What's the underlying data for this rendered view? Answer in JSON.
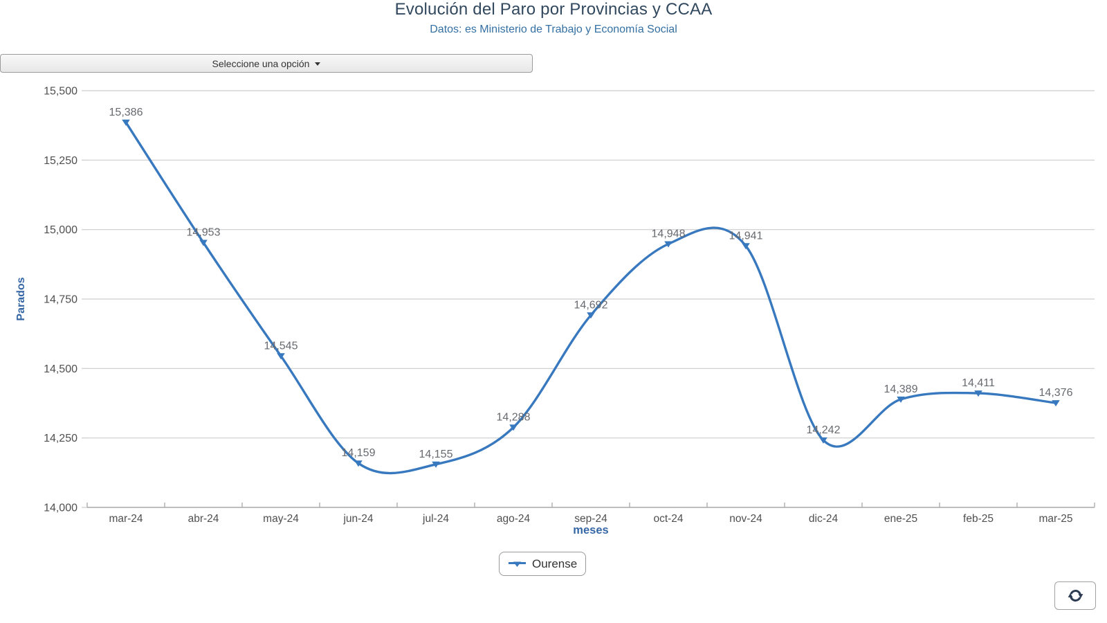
{
  "header": {
    "title": "Evolución del Paro por Provincias y CCAA",
    "subtitle": "Datos: es Ministerio de Trabajo y Economía Social"
  },
  "controls": {
    "dropdown_label": "Seleccione una opción"
  },
  "chart_data": {
    "type": "line",
    "title": "Evolución del Paro por Provincias y CCAA",
    "subtitle": "Datos: es Ministerio de Trabajo y Economía Social",
    "categories": [
      "mar-24",
      "abr-24",
      "may-24",
      "jun-24",
      "jul-24",
      "ago-24",
      "sep-24",
      "oct-24",
      "nov-24",
      "dic-24",
      "ene-25",
      "feb-25",
      "mar-25"
    ],
    "series": [
      {
        "name": "Ourense",
        "values": [
          15386,
          14953,
          14545,
          14159,
          14155,
          14288,
          14692,
          14948,
          14941,
          14242,
          14389,
          14411,
          14376
        ]
      }
    ],
    "point_labels": [
      "15,386",
      "14,953",
      "14,545",
      "14,159",
      "14,155",
      "14,288",
      "14,692",
      "14,948",
      "14,941",
      "14,242",
      "14,389",
      "14,411",
      "14,376"
    ],
    "xlabel": "meses",
    "ylabel": "Parados",
    "ylim": [
      14000,
      15500
    ],
    "ytick_step": 250,
    "ytick_labels": [
      "14,000",
      "14,250",
      "14,500",
      "14,750",
      "15,000",
      "15,250",
      "15,500"
    ],
    "grid": true,
    "legend_position": "bottom",
    "curve": "smooth",
    "marker": "triangle-down"
  },
  "legend": {
    "label": "Ourense"
  },
  "refresh": {
    "icon": "refresh-icon"
  },
  "colors": {
    "title": "#31485e",
    "subtitle": "#3470a3",
    "accent_line": "#3778be",
    "axis_title": "#3566a5",
    "tick_label": "#4f4f4f",
    "data_label": "#66696e",
    "grid": "#cccccc",
    "axis": "#a8a8a8",
    "button_text": "#333333",
    "refresh_icon": "#2b3b52"
  }
}
